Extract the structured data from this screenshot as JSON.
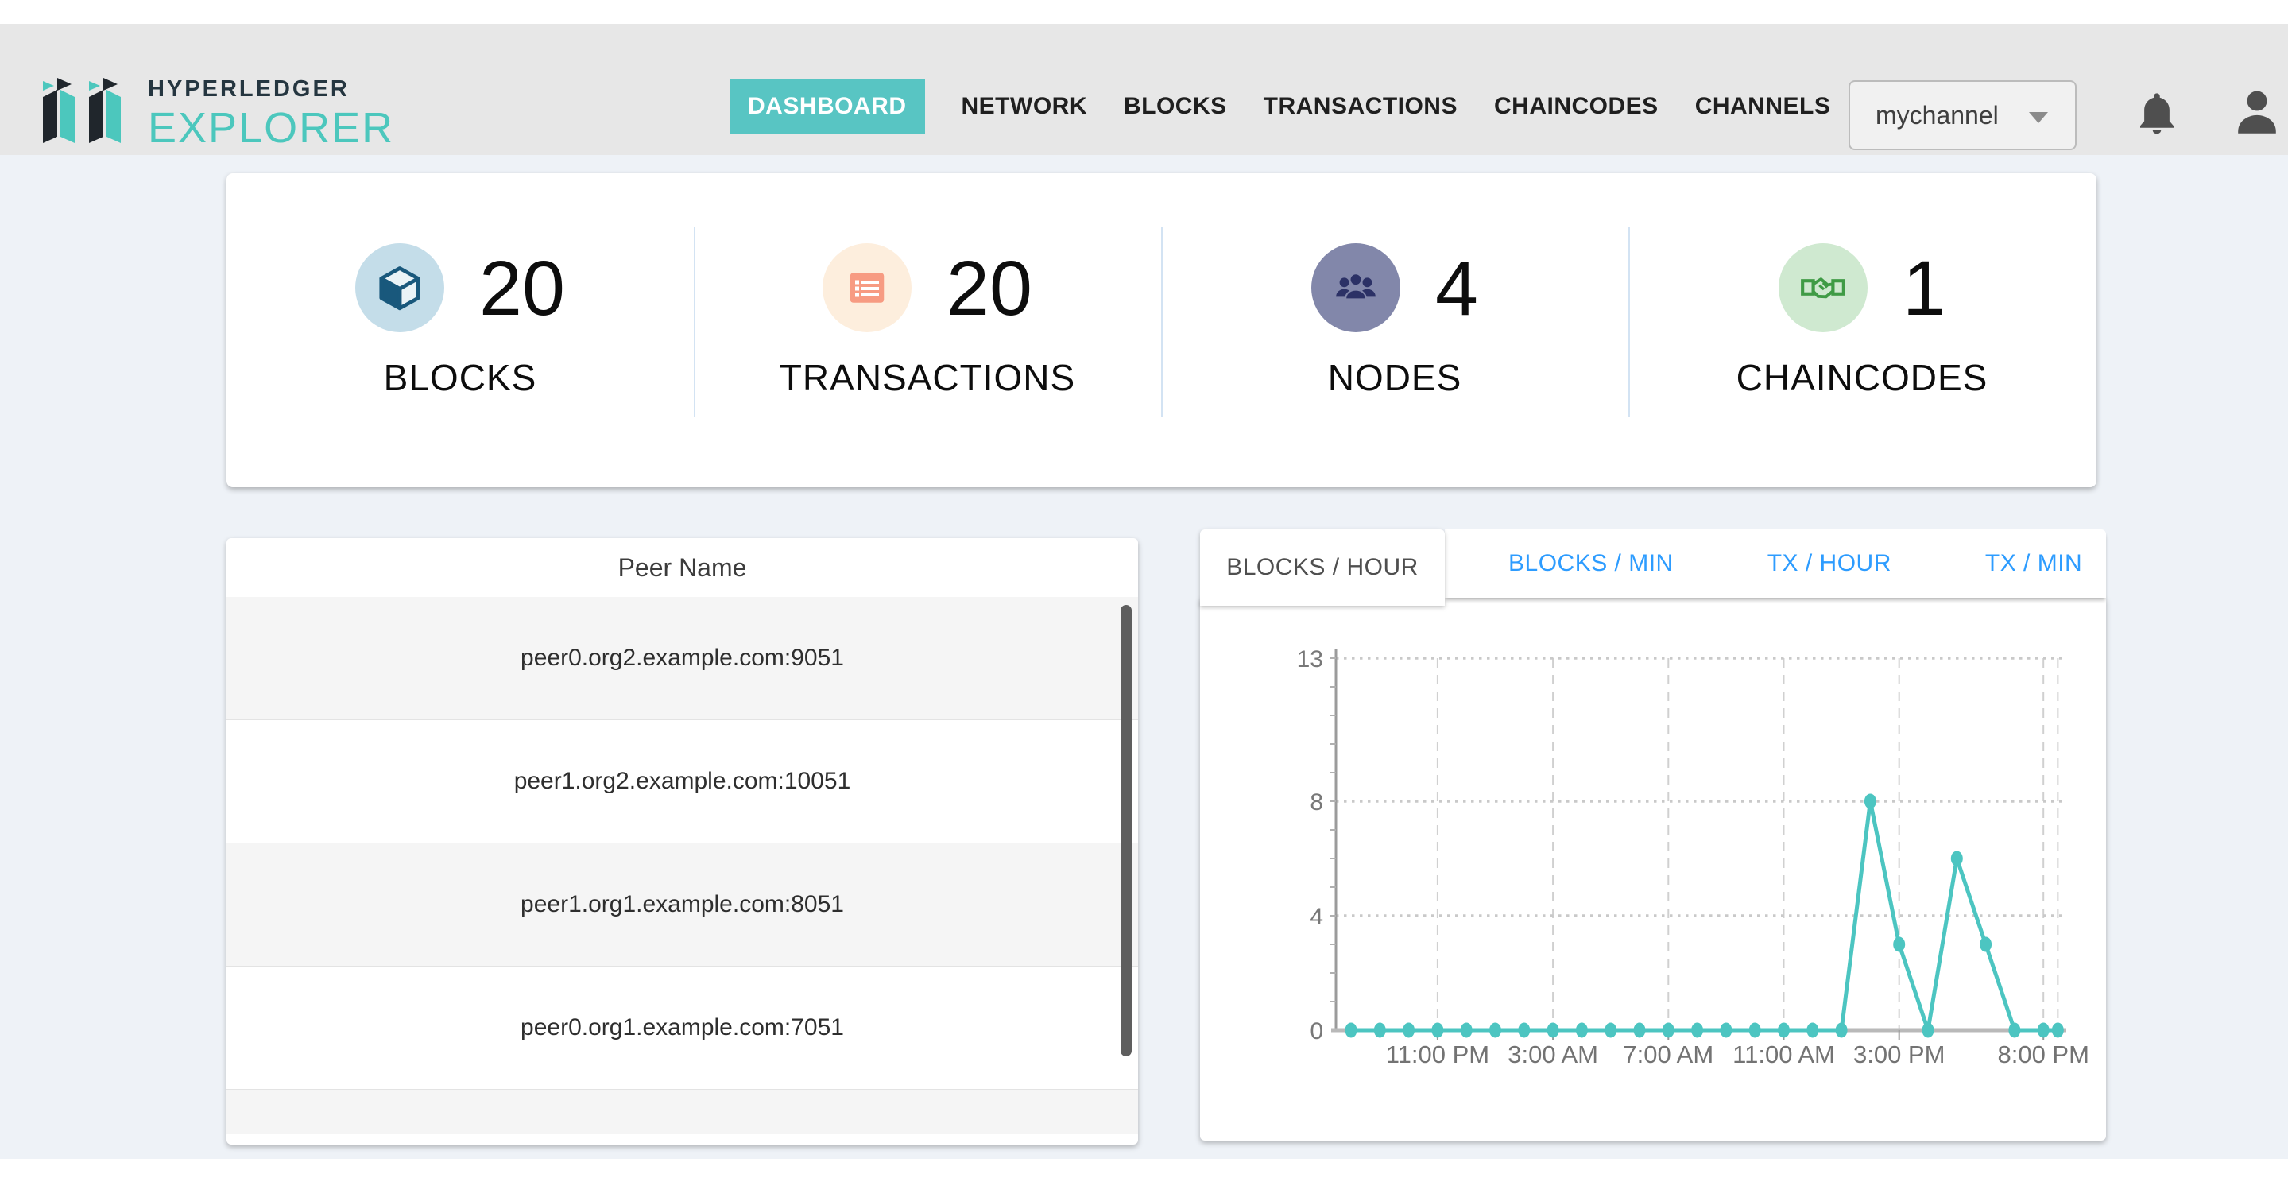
{
  "header": {
    "logo": {
      "title": "HYPERLEDGER",
      "subtitle": "EXPLORER"
    },
    "nav": {
      "items": [
        {
          "label": "DASHBOARD",
          "active": true
        },
        {
          "label": "NETWORK",
          "active": false
        },
        {
          "label": "BLOCKS",
          "active": false
        },
        {
          "label": "TRANSACTIONS",
          "active": false
        },
        {
          "label": "CHAINCODES",
          "active": false
        },
        {
          "label": "CHANNELS",
          "active": false
        }
      ]
    },
    "channel_select": {
      "value": "mychannel",
      "icon": "chevron-down-icon"
    },
    "icons": {
      "notifications": "bell-icon",
      "account": "user-icon"
    }
  },
  "stats": {
    "cards": [
      {
        "label": "BLOCKS",
        "value": "20",
        "icon": "cube-icon",
        "circle_color": "#c4dde9",
        "icon_color": "#19587c"
      },
      {
        "label": "TRANSACTIONS",
        "value": "20",
        "icon": "list-icon",
        "circle_color": "#fdeedd",
        "icon_color": "#f79b82"
      },
      {
        "label": "NODES",
        "value": "4",
        "icon": "group-icon",
        "circle_color": "#8287aa",
        "icon_color": "#2c3166"
      },
      {
        "label": "CHAINCODES",
        "value": "1",
        "icon": "handshake-icon",
        "circle_color": "#cfe9d0",
        "icon_color": "#3f9b45"
      }
    ]
  },
  "peers": {
    "header": "Peer Name",
    "rows": [
      {
        "name": "peer0.org2.example.com:9051"
      },
      {
        "name": "peer1.org2.example.com:10051"
      },
      {
        "name": "peer1.org1.example.com:8051"
      },
      {
        "name": "peer0.org1.example.com:7051"
      }
    ]
  },
  "charts": {
    "tabs": [
      {
        "label": "BLOCKS / HOUR",
        "active": true
      },
      {
        "label": "BLOCKS / MIN",
        "active": false
      },
      {
        "label": "TX / HOUR",
        "active": false
      },
      {
        "label": "TX / MIN",
        "active": false
      }
    ]
  },
  "chart_data": {
    "type": "line",
    "title": "BLOCKS / HOUR",
    "x_units": [
      0,
      1,
      2,
      3,
      4,
      5,
      6,
      7,
      8,
      9,
      10,
      11,
      12,
      13,
      14,
      15,
      16,
      17,
      18,
      19,
      20,
      21,
      22,
      23,
      24,
      24.5
    ],
    "values": [
      0,
      0,
      0,
      0,
      0,
      0,
      0,
      0,
      0,
      0,
      0,
      0,
      0,
      0,
      0,
      0,
      0,
      0,
      8,
      3,
      0,
      6,
      3,
      0,
      0,
      0
    ],
    "x_tick_units": [
      3,
      7,
      11,
      15,
      19,
      24
    ],
    "x_tick_labels": [
      "11:00 PM",
      "3:00 AM",
      "7:00 AM",
      "11:00 AM",
      "3:00 PM",
      "8:00 PM"
    ],
    "y_tick_values": [
      0,
      4,
      8,
      13
    ],
    "y_tick_labels": [
      "0",
      "4",
      "8",
      "13"
    ],
    "ylim": [
      0,
      13
    ],
    "line_color": "#4cc5c1",
    "axis_color": "#9b9b9b",
    "grid": true,
    "legend": "none"
  }
}
